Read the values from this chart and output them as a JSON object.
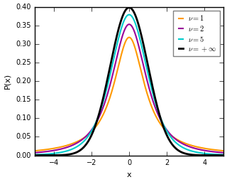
{
  "title": "",
  "xlabel": "x",
  "ylabel": "P(x)",
  "xlim": [
    -5,
    5
  ],
  "ylim": [
    0,
    0.4
  ],
  "yticks": [
    0.0,
    0.05,
    0.1,
    0.15,
    0.2,
    0.25,
    0.3,
    0.35,
    0.4
  ],
  "xticks": [
    -4,
    -2,
    0,
    2,
    4
  ],
  "distributions": [
    {
      "nu": 1,
      "label": "$\\nu=1$",
      "color": "#FF9900",
      "lw": 1.5
    },
    {
      "nu": 2,
      "label": "$\\nu=2$",
      "color": "#990099",
      "lw": 1.5
    },
    {
      "nu": 5,
      "label": "$\\nu=5$",
      "color": "#00CCCC",
      "lw": 1.5
    },
    {
      "nu": 10000000000.0,
      "label": "$\\nu=+\\infty$",
      "color": "#000000",
      "lw": 2.0
    }
  ],
  "legend_fontsize": 7.5,
  "axis_fontsize": 8,
  "tick_fontsize": 7
}
